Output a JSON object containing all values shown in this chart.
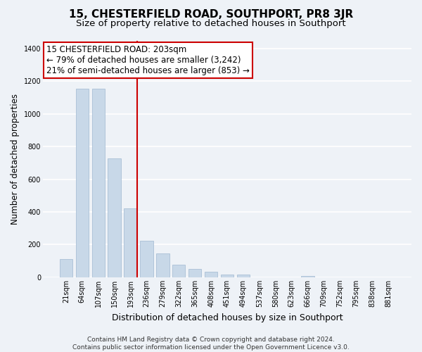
{
  "title": "15, CHESTERFIELD ROAD, SOUTHPORT, PR8 3JR",
  "subtitle": "Size of property relative to detached houses in Southport",
  "xlabel": "Distribution of detached houses by size in Southport",
  "ylabel": "Number of detached properties",
  "bar_labels": [
    "21sqm",
    "64sqm",
    "107sqm",
    "150sqm",
    "193sqm",
    "236sqm",
    "279sqm",
    "322sqm",
    "365sqm",
    "408sqm",
    "451sqm",
    "494sqm",
    "537sqm",
    "580sqm",
    "623sqm",
    "666sqm",
    "709sqm",
    "752sqm",
    "795sqm",
    "838sqm",
    "881sqm"
  ],
  "bar_heights": [
    110,
    1155,
    1155,
    730,
    420,
    225,
    148,
    75,
    50,
    33,
    18,
    15,
    0,
    0,
    0,
    8,
    0,
    0,
    0,
    0,
    0
  ],
  "bar_color": "#c8d8e8",
  "bar_edge_color": "#a0b8d0",
  "vline_x_index": 4,
  "vline_color": "#cc0000",
  "annotation_title": "15 CHESTERFIELD ROAD: 203sqm",
  "annotation_line1": "← 79% of detached houses are smaller (3,242)",
  "annotation_line2": "21% of semi-detached houses are larger (853) →",
  "annotation_box_facecolor": "#ffffff",
  "annotation_box_edgecolor": "#cc0000",
  "ylim": [
    0,
    1450
  ],
  "yticks": [
    0,
    200,
    400,
    600,
    800,
    1000,
    1200,
    1400
  ],
  "footer_line1": "Contains HM Land Registry data © Crown copyright and database right 2024.",
  "footer_line2": "Contains public sector information licensed under the Open Government Licence v3.0.",
  "background_color": "#eef2f7",
  "grid_color": "#ffffff",
  "title_fontsize": 11,
  "subtitle_fontsize": 9.5,
  "ylabel_fontsize": 8.5,
  "xlabel_fontsize": 9,
  "tick_fontsize": 7,
  "annotation_fontsize": 8.5,
  "footer_fontsize": 6.5
}
